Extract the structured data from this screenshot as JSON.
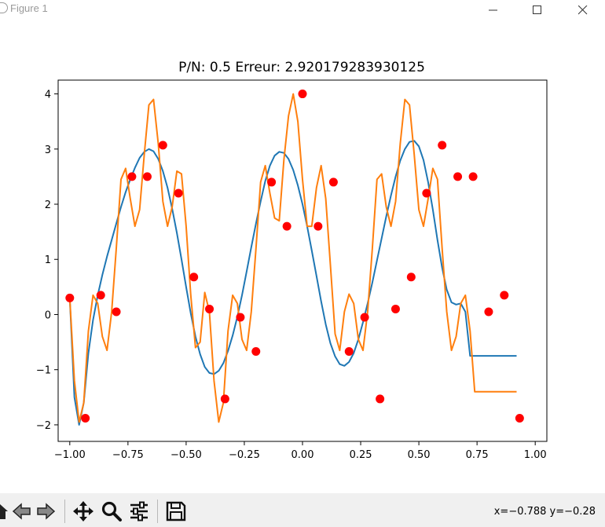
{
  "window": {
    "title": "Figure 1"
  },
  "toolbar": {
    "buttons": [
      {
        "name": "home-icon"
      },
      {
        "name": "back-icon"
      },
      {
        "name": "forward-icon"
      },
      {
        "name": "pan-icon"
      },
      {
        "name": "zoom-icon"
      },
      {
        "name": "configure-subplots-icon"
      },
      {
        "name": "save-icon"
      }
    ],
    "coords": "x=−0.788 y=−0.28"
  },
  "chart_data": {
    "type": "line",
    "title": "P/N: 0.5 Erreur: 2.920179283930125",
    "xlabel": "",
    "ylabel": "",
    "xlim": [
      -1.05,
      1.05
    ],
    "ylim": [
      -2.3,
      4.25
    ],
    "xticks": [
      -1.0,
      -0.75,
      -0.5,
      -0.25,
      0.0,
      0.25,
      0.5,
      0.75,
      1.0
    ],
    "xtick_labels": [
      "−1.00",
      "−0.75",
      "−0.50",
      "−0.25",
      "0.00",
      "0.25",
      "0.50",
      "0.75",
      "1.00"
    ],
    "yticks": [
      -2,
      -1,
      0,
      1,
      2,
      3,
      4
    ],
    "ytick_labels": [
      "−2",
      "−1",
      "0",
      "1",
      "2",
      "3",
      "4"
    ],
    "grid": false,
    "legend": "none",
    "colors": {
      "blue": "#1f77b4",
      "orange": "#ff7f0e",
      "points": "#ff0000"
    },
    "series": [
      {
        "kind": "line",
        "color": "#1f77b4",
        "x": [
          -1.0,
          -0.98,
          -0.96,
          -0.94,
          -0.92,
          -0.9,
          -0.88,
          -0.86,
          -0.84,
          -0.82,
          -0.8,
          -0.78,
          -0.76,
          -0.74,
          -0.72,
          -0.7,
          -0.68,
          -0.66,
          -0.64,
          -0.62,
          -0.6,
          -0.58,
          -0.56,
          -0.54,
          -0.52,
          -0.5,
          -0.48,
          -0.46,
          -0.44,
          -0.42,
          -0.4,
          -0.38,
          -0.36,
          -0.34,
          -0.32,
          -0.3,
          -0.28,
          -0.26,
          -0.24,
          -0.22,
          -0.2,
          -0.18,
          -0.16,
          -0.14,
          -0.12,
          -0.1,
          -0.08,
          -0.06,
          -0.04,
          -0.02,
          0.0,
          0.02,
          0.04,
          0.06,
          0.08,
          0.1,
          0.12,
          0.14,
          0.16,
          0.18,
          0.2,
          0.22,
          0.24,
          0.26,
          0.28,
          0.3,
          0.32,
          0.34,
          0.36,
          0.38,
          0.4,
          0.42,
          0.44,
          0.46,
          0.48,
          0.5,
          0.52,
          0.54,
          0.56,
          0.58,
          0.6,
          0.62,
          0.64,
          0.66,
          0.68,
          0.7,
          0.72,
          0.74,
          0.76,
          0.78,
          0.8,
          0.82,
          0.84,
          0.86,
          0.88,
          0.9,
          0.92
        ],
        "y": [
          0.3,
          -1.5,
          -2.0,
          -1.6,
          -0.7,
          -0.1,
          0.35,
          0.72,
          1.05,
          1.35,
          1.65,
          1.95,
          2.22,
          2.45,
          2.66,
          2.84,
          2.95,
          3.0,
          2.96,
          2.82,
          2.6,
          2.3,
          1.92,
          1.48,
          1.0,
          0.5,
          0.02,
          -0.4,
          -0.72,
          -0.95,
          -1.06,
          -1.08,
          -1.02,
          -0.88,
          -0.66,
          -0.38,
          -0.04,
          0.35,
          0.78,
          1.22,
          1.65,
          2.05,
          2.42,
          2.7,
          2.88,
          2.95,
          2.93,
          2.82,
          2.62,
          2.34,
          2.0,
          1.6,
          1.16,
          0.7,
          0.24,
          -0.18,
          -0.52,
          -0.76,
          -0.9,
          -0.93,
          -0.86,
          -0.7,
          -0.45,
          -0.14,
          0.2,
          0.58,
          0.98,
          1.38,
          1.78,
          2.16,
          2.5,
          2.79,
          3.0,
          3.13,
          3.15,
          3.05,
          2.8,
          2.4,
          1.9,
          1.35,
          0.85,
          0.45,
          0.22,
          0.18,
          0.2,
          0.05,
          -0.75,
          -0.75,
          -0.75,
          -0.75,
          -0.75,
          -0.75,
          -0.75,
          -0.75,
          -0.75,
          -0.75,
          -0.75
        ]
      },
      {
        "kind": "line",
        "color": "#ff7f0e",
        "x": [
          -1.0,
          -0.98,
          -0.96,
          -0.94,
          -0.92,
          -0.9,
          -0.88,
          -0.86,
          -0.84,
          -0.82,
          -0.8,
          -0.78,
          -0.76,
          -0.74,
          -0.72,
          -0.7,
          -0.68,
          -0.66,
          -0.64,
          -0.62,
          -0.6,
          -0.58,
          -0.56,
          -0.54,
          -0.52,
          -0.5,
          -0.48,
          -0.46,
          -0.44,
          -0.42,
          -0.4,
          -0.38,
          -0.36,
          -0.34,
          -0.32,
          -0.3,
          -0.28,
          -0.26,
          -0.24,
          -0.22,
          -0.2,
          -0.18,
          -0.16,
          -0.14,
          -0.12,
          -0.1,
          -0.08,
          -0.06,
          -0.04,
          -0.02,
          0.0,
          0.02,
          0.04,
          0.06,
          0.08,
          0.1,
          0.12,
          0.14,
          0.16,
          0.18,
          0.2,
          0.22,
          0.24,
          0.26,
          0.28,
          0.3,
          0.32,
          0.34,
          0.36,
          0.38,
          0.4,
          0.42,
          0.44,
          0.46,
          0.48,
          0.5,
          0.52,
          0.54,
          0.56,
          0.58,
          0.6,
          0.62,
          0.64,
          0.66,
          0.68,
          0.7,
          0.72,
          0.74,
          0.76,
          0.78,
          0.8,
          0.82,
          0.84,
          0.86,
          0.88,
          0.9,
          0.92
        ],
        "y": [
          0.3,
          -1.2,
          -1.95,
          -1.6,
          -0.3,
          0.35,
          0.2,
          -0.4,
          -0.65,
          0.05,
          1.2,
          2.45,
          2.65,
          2.1,
          1.6,
          1.9,
          2.9,
          3.8,
          3.9,
          3.1,
          2.05,
          1.6,
          1.95,
          2.6,
          2.55,
          1.6,
          0.35,
          -0.6,
          -0.5,
          0.4,
          0.05,
          -1.2,
          -1.95,
          -1.6,
          -0.3,
          0.35,
          0.2,
          -0.45,
          -0.65,
          0.05,
          1.2,
          2.4,
          2.7,
          2.2,
          1.75,
          1.7,
          2.8,
          3.6,
          4.0,
          3.5,
          2.45,
          1.6,
          1.6,
          2.3,
          2.7,
          2.1,
          0.9,
          -0.35,
          -0.65,
          0.05,
          0.37,
          0.2,
          -0.45,
          -0.65,
          0.05,
          1.2,
          2.45,
          2.55,
          1.95,
          1.6,
          2.05,
          3.1,
          3.9,
          3.8,
          2.9,
          1.9,
          1.6,
          2.1,
          2.65,
          2.45,
          1.2,
          0.05,
          -0.65,
          -0.4,
          0.2,
          0.35,
          -0.3,
          -1.4,
          -1.4,
          -1.4,
          -1.4,
          -1.4,
          -1.4,
          -1.4,
          -1.4,
          -1.4,
          -1.4
        ]
      },
      {
        "kind": "scatter",
        "color": "#ff0000",
        "x": [
          -1.0,
          -0.933,
          -0.867,
          -0.8,
          -0.733,
          -0.667,
          -0.6,
          -0.533,
          -0.467,
          -0.4,
          -0.333,
          -0.267,
          -0.2,
          -0.133,
          -0.067,
          0.0,
          0.067,
          0.133,
          0.2,
          0.267,
          0.333,
          0.4,
          0.467,
          0.533,
          0.6,
          0.667,
          0.733,
          0.8,
          0.867,
          0.933
        ],
        "y": [
          0.3,
          -1.88,
          0.35,
          0.05,
          2.5,
          2.5,
          3.07,
          2.2,
          0.68,
          0.1,
          -1.53,
          -0.05,
          -0.67,
          2.4,
          1.6,
          4.0,
          1.6,
          2.4,
          -0.67,
          -0.05,
          -1.53,
          0.1,
          0.68,
          2.2,
          3.07,
          2.5,
          2.5,
          0.05,
          0.35,
          -1.88
        ]
      }
    ]
  }
}
